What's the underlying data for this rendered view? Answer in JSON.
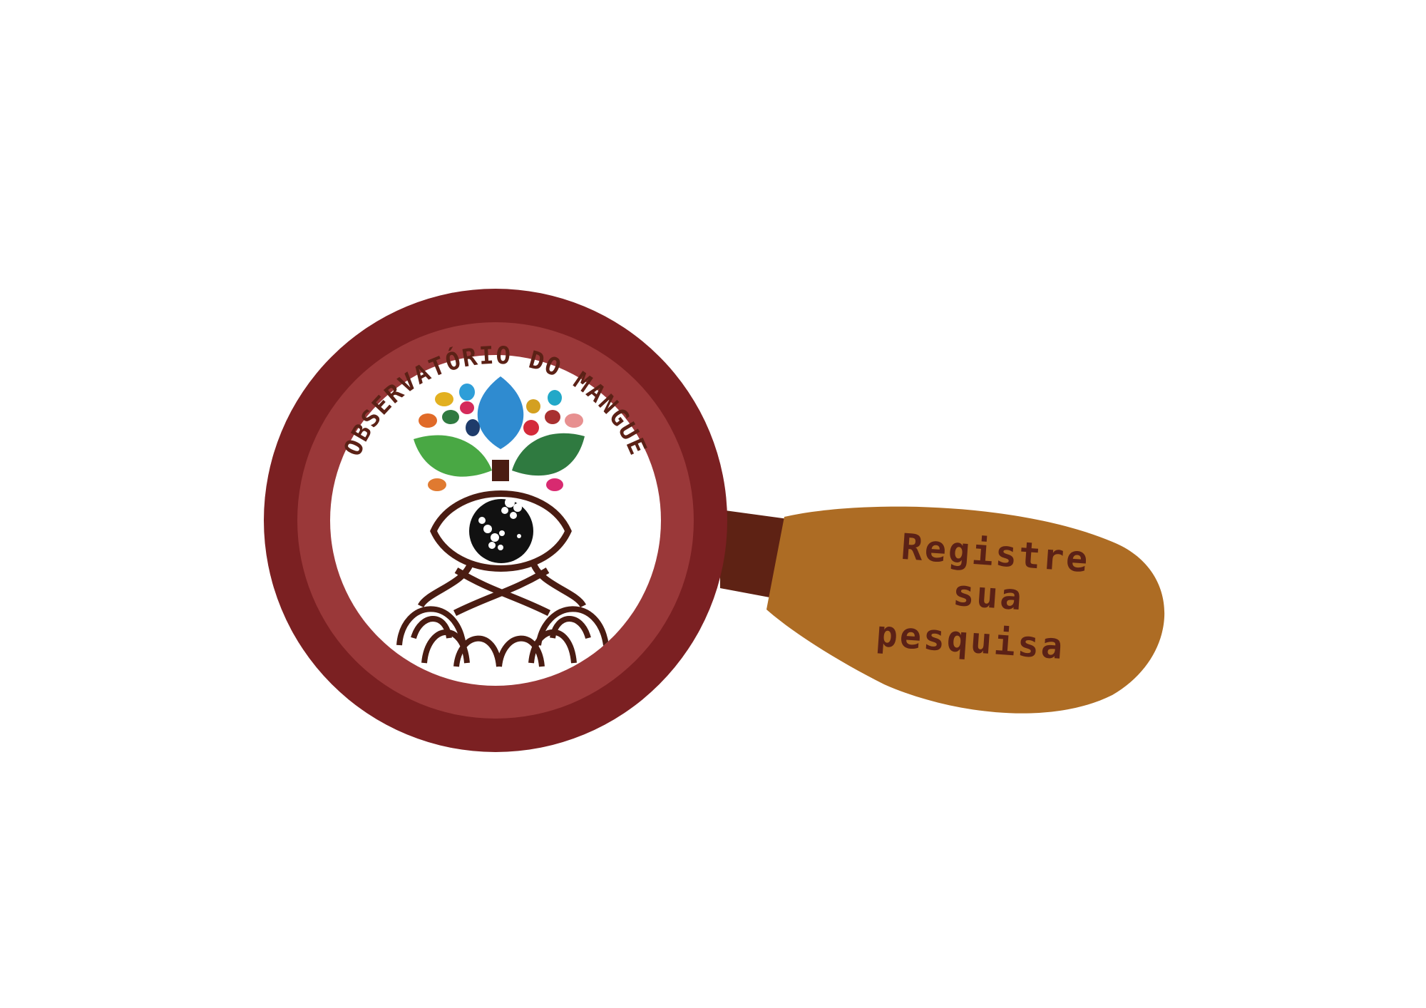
{
  "logo": {
    "arc_text": "OBSERVATÓRIO DO MANGUE",
    "emblem_icon": "eye-mangrove-tree-icon"
  },
  "handle": {
    "line1": "Registre",
    "line2": "sua",
    "line3": "pesquisa"
  },
  "colors": {
    "outer_ring": "#7b2022",
    "inner_ring": "#9a3839",
    "neck": "#5e2214",
    "handle": "#ad6c24",
    "text_brown": "#5b2116",
    "root_brown": "#4a1c12"
  }
}
